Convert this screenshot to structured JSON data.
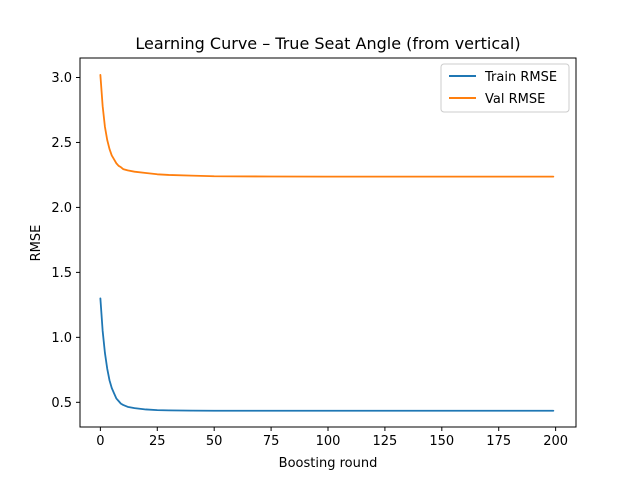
{
  "chart_data": {
    "type": "line",
    "title": "Learning Curve – True Seat Angle (from vertical)",
    "xlabel": "Boosting round",
    "ylabel": "RMSE",
    "xlim": [
      -8.95,
      208.95
    ],
    "ylim": [
      0.31,
      3.15
    ],
    "xticks": [
      0,
      25,
      50,
      75,
      100,
      125,
      150,
      175,
      200
    ],
    "yticks": [
      0.5,
      1.0,
      1.5,
      2.0,
      2.5,
      3.0
    ],
    "ytick_labels": [
      "0.5",
      "1.0",
      "1.5",
      "2.0",
      "2.5",
      "3.0"
    ],
    "grid": false,
    "legend_position": "upper right",
    "series": [
      {
        "name": "Train RMSE",
        "color": "#1f77b4",
        "x": [
          0,
          1,
          2,
          3,
          4,
          5,
          6,
          7,
          8,
          9,
          10,
          12,
          15,
          20,
          25,
          30,
          40,
          50,
          75,
          100,
          125,
          150,
          175,
          199
        ],
        "y": [
          1.3,
          1.05,
          0.88,
          0.76,
          0.67,
          0.61,
          0.57,
          0.53,
          0.51,
          0.49,
          0.48,
          0.465,
          0.455,
          0.445,
          0.44,
          0.438,
          0.436,
          0.435,
          0.435,
          0.435,
          0.435,
          0.435,
          0.435,
          0.435
        ]
      },
      {
        "name": "Val RMSE",
        "color": "#ff7f0e",
        "x": [
          0,
          1,
          2,
          3,
          4,
          5,
          6,
          7,
          8,
          9,
          10,
          12,
          15,
          20,
          25,
          30,
          40,
          50,
          75,
          100,
          125,
          150,
          175,
          199
        ],
        "y": [
          3.02,
          2.78,
          2.62,
          2.52,
          2.45,
          2.4,
          2.37,
          2.34,
          2.32,
          2.31,
          2.295,
          2.285,
          2.275,
          2.265,
          2.255,
          2.25,
          2.245,
          2.24,
          2.238,
          2.237,
          2.237,
          2.237,
          2.237,
          2.237
        ]
      }
    ]
  }
}
